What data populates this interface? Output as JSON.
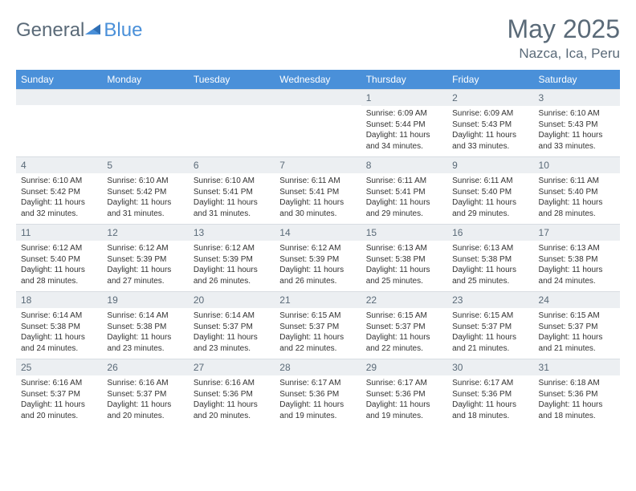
{
  "logo": {
    "word1": "General",
    "word2": "Blue"
  },
  "header": {
    "monthTitle": "May 2025",
    "location": "Nazca, Ica, Peru"
  },
  "colors": {
    "headerBlue": "#4a90d9",
    "dayNumBg": "#eceff2",
    "textMuted": "#5a6a78",
    "bodyText": "#333333",
    "white": "#ffffff"
  },
  "weekdays": [
    "Sunday",
    "Monday",
    "Tuesday",
    "Wednesday",
    "Thursday",
    "Friday",
    "Saturday"
  ],
  "weeks": [
    [
      null,
      null,
      null,
      null,
      {
        "n": "1",
        "sr": "6:09 AM",
        "ss": "5:44 PM",
        "dh": "11",
        "dm": "34"
      },
      {
        "n": "2",
        "sr": "6:09 AM",
        "ss": "5:43 PM",
        "dh": "11",
        "dm": "33"
      },
      {
        "n": "3",
        "sr": "6:10 AM",
        "ss": "5:43 PM",
        "dh": "11",
        "dm": "33"
      }
    ],
    [
      {
        "n": "4",
        "sr": "6:10 AM",
        "ss": "5:42 PM",
        "dh": "11",
        "dm": "32"
      },
      {
        "n": "5",
        "sr": "6:10 AM",
        "ss": "5:42 PM",
        "dh": "11",
        "dm": "31"
      },
      {
        "n": "6",
        "sr": "6:10 AM",
        "ss": "5:41 PM",
        "dh": "11",
        "dm": "31"
      },
      {
        "n": "7",
        "sr": "6:11 AM",
        "ss": "5:41 PM",
        "dh": "11",
        "dm": "30"
      },
      {
        "n": "8",
        "sr": "6:11 AM",
        "ss": "5:41 PM",
        "dh": "11",
        "dm": "29"
      },
      {
        "n": "9",
        "sr": "6:11 AM",
        "ss": "5:40 PM",
        "dh": "11",
        "dm": "29"
      },
      {
        "n": "10",
        "sr": "6:11 AM",
        "ss": "5:40 PM",
        "dh": "11",
        "dm": "28"
      }
    ],
    [
      {
        "n": "11",
        "sr": "6:12 AM",
        "ss": "5:40 PM",
        "dh": "11",
        "dm": "28"
      },
      {
        "n": "12",
        "sr": "6:12 AM",
        "ss": "5:39 PM",
        "dh": "11",
        "dm": "27"
      },
      {
        "n": "13",
        "sr": "6:12 AM",
        "ss": "5:39 PM",
        "dh": "11",
        "dm": "26"
      },
      {
        "n": "14",
        "sr": "6:12 AM",
        "ss": "5:39 PM",
        "dh": "11",
        "dm": "26"
      },
      {
        "n": "15",
        "sr": "6:13 AM",
        "ss": "5:38 PM",
        "dh": "11",
        "dm": "25"
      },
      {
        "n": "16",
        "sr": "6:13 AM",
        "ss": "5:38 PM",
        "dh": "11",
        "dm": "25"
      },
      {
        "n": "17",
        "sr": "6:13 AM",
        "ss": "5:38 PM",
        "dh": "11",
        "dm": "24"
      }
    ],
    [
      {
        "n": "18",
        "sr": "6:14 AM",
        "ss": "5:38 PM",
        "dh": "11",
        "dm": "24"
      },
      {
        "n": "19",
        "sr": "6:14 AM",
        "ss": "5:38 PM",
        "dh": "11",
        "dm": "23"
      },
      {
        "n": "20",
        "sr": "6:14 AM",
        "ss": "5:37 PM",
        "dh": "11",
        "dm": "23"
      },
      {
        "n": "21",
        "sr": "6:15 AM",
        "ss": "5:37 PM",
        "dh": "11",
        "dm": "22"
      },
      {
        "n": "22",
        "sr": "6:15 AM",
        "ss": "5:37 PM",
        "dh": "11",
        "dm": "22"
      },
      {
        "n": "23",
        "sr": "6:15 AM",
        "ss": "5:37 PM",
        "dh": "11",
        "dm": "21"
      },
      {
        "n": "24",
        "sr": "6:15 AM",
        "ss": "5:37 PM",
        "dh": "11",
        "dm": "21"
      }
    ],
    [
      {
        "n": "25",
        "sr": "6:16 AM",
        "ss": "5:37 PM",
        "dh": "11",
        "dm": "20"
      },
      {
        "n": "26",
        "sr": "6:16 AM",
        "ss": "5:37 PM",
        "dh": "11",
        "dm": "20"
      },
      {
        "n": "27",
        "sr": "6:16 AM",
        "ss": "5:36 PM",
        "dh": "11",
        "dm": "20"
      },
      {
        "n": "28",
        "sr": "6:17 AM",
        "ss": "5:36 PM",
        "dh": "11",
        "dm": "19"
      },
      {
        "n": "29",
        "sr": "6:17 AM",
        "ss": "5:36 PM",
        "dh": "11",
        "dm": "19"
      },
      {
        "n": "30",
        "sr": "6:17 AM",
        "ss": "5:36 PM",
        "dh": "11",
        "dm": "18"
      },
      {
        "n": "31",
        "sr": "6:18 AM",
        "ss": "5:36 PM",
        "dh": "11",
        "dm": "18"
      }
    ]
  ],
  "labels": {
    "sunrisePrefix": "Sunrise: ",
    "sunsetPrefix": "Sunset: ",
    "daylightPrefix": "Daylight: ",
    "hoursWord": " hours",
    "andWord": "and ",
    "minutesWord": " minutes."
  }
}
